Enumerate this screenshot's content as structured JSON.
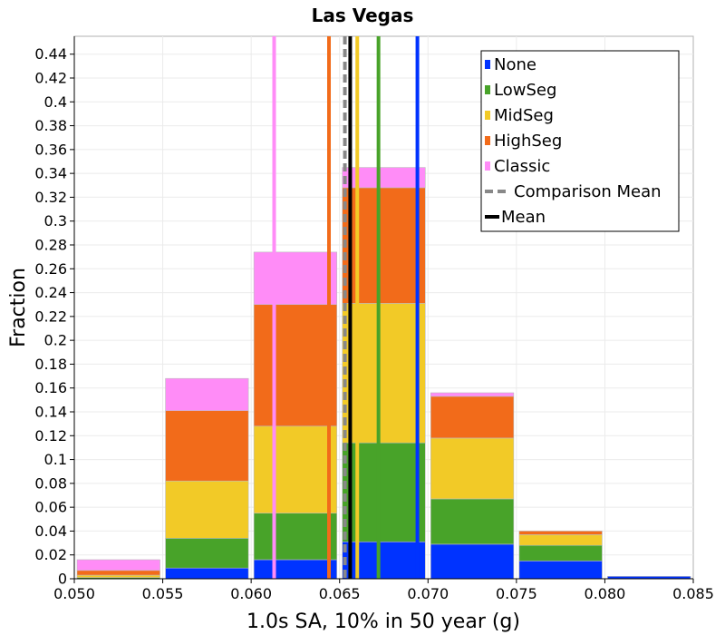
{
  "chart_data": {
    "type": "bar",
    "stacked": true,
    "title": "Las Vegas",
    "xlabel": "1.0s SA, 10% in 50 year (g)",
    "ylabel": "Fraction",
    "xlim": [
      0.05,
      0.085
    ],
    "ylim": [
      0,
      0.455
    ],
    "grid": true,
    "legend_position": "top-right",
    "xticks": [
      "0.050",
      "0.055",
      "0.060",
      "0.065",
      "0.070",
      "0.075",
      "0.080",
      "0.085"
    ],
    "yticks": [
      "0",
      "0.02",
      "0.04",
      "0.06",
      "0.08",
      "0.1",
      "0.12",
      "0.14",
      "0.16",
      "0.18",
      "0.2",
      "0.22",
      "0.24",
      "0.26",
      "0.28",
      "0.3",
      "0.32",
      "0.34",
      "0.36",
      "0.38",
      "0.4",
      "0.42",
      "0.44"
    ],
    "bins": [
      {
        "x0": 0.05,
        "x1": 0.055
      },
      {
        "x0": 0.055,
        "x1": 0.06
      },
      {
        "x0": 0.06,
        "x1": 0.065
      },
      {
        "x0": 0.065,
        "x1": 0.07
      },
      {
        "x0": 0.07,
        "x1": 0.075
      },
      {
        "x0": 0.075,
        "x1": 0.08
      },
      {
        "x0": 0.08,
        "x1": 0.085
      }
    ],
    "series": [
      {
        "name": "None",
        "color": "#0033ff",
        "values": [
          0.0,
          0.009,
          0.016,
          0.031,
          0.029,
          0.015,
          0.002
        ]
      },
      {
        "name": "LowSeg",
        "color": "#48a329",
        "values": [
          0.001,
          0.025,
          0.039,
          0.083,
          0.038,
          0.013,
          0.0
        ]
      },
      {
        "name": "MidSeg",
        "color": "#f2ca27",
        "values": [
          0.002,
          0.048,
          0.073,
          0.117,
          0.051,
          0.009,
          0.0
        ]
      },
      {
        "name": "HighSeg",
        "color": "#f26b1a",
        "values": [
          0.004,
          0.059,
          0.102,
          0.097,
          0.035,
          0.003,
          0.0
        ]
      },
      {
        "name": "Classic",
        "color": "#ff8cf7",
        "values": [
          0.009,
          0.027,
          0.044,
          0.017,
          0.003,
          0.0,
          0.0
        ]
      }
    ],
    "vertical_lines": [
      {
        "name": "None",
        "color": "#0033ff",
        "x": 0.0694,
        "style": "solid"
      },
      {
        "name": "LowSeg",
        "color": "#48a329",
        "x": 0.0672,
        "style": "solid"
      },
      {
        "name": "MidSeg",
        "color": "#f2ca27",
        "x": 0.066,
        "style": "solid"
      },
      {
        "name": "HighSeg",
        "color": "#f26b1a",
        "x": 0.0644,
        "style": "solid"
      },
      {
        "name": "Classic",
        "color": "#ff8cf7",
        "x": 0.0613,
        "style": "solid"
      },
      {
        "name": "Comparison Mean",
        "color": "#888888",
        "x": 0.0653,
        "style": "dashed"
      },
      {
        "name": "Mean",
        "color": "#000000",
        "x": 0.0656,
        "style": "solid"
      }
    ],
    "legend": [
      {
        "label": "None",
        "color": "#0033ff",
        "kind": "box"
      },
      {
        "label": "LowSeg",
        "color": "#48a329",
        "kind": "box"
      },
      {
        "label": "MidSeg",
        "color": "#f2ca27",
        "kind": "box"
      },
      {
        "label": "HighSeg",
        "color": "#f26b1a",
        "kind": "box"
      },
      {
        "label": "Classic",
        "color": "#ff8cf7",
        "kind": "box"
      },
      {
        "label": "Comparison Mean",
        "color": "#888888",
        "kind": "dash"
      },
      {
        "label": "Mean",
        "color": "#000000",
        "kind": "line"
      }
    ]
  }
}
